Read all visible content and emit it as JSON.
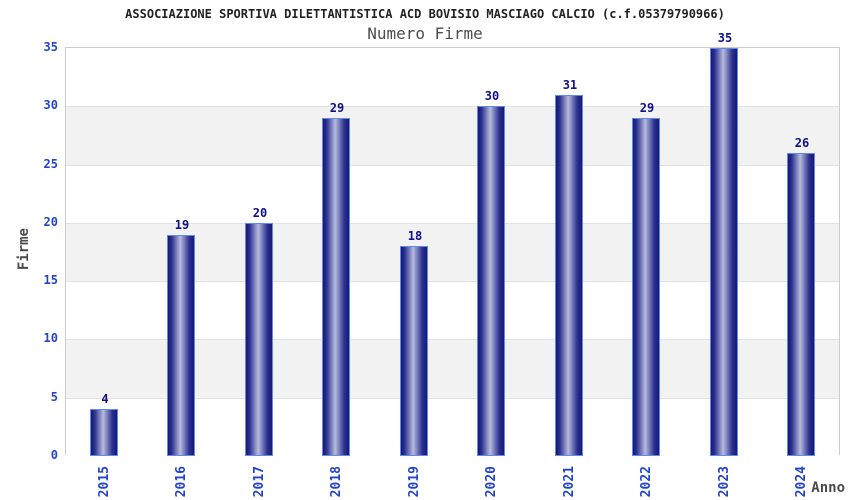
{
  "chart_data": {
    "type": "bar",
    "title": "ASSOCIAZIONE SPORTIVA DILETTANTISTICA ACD BOVISIO MASCIAGO CALCIO (c.f.05379790966)",
    "subtitle": "Numero Firme",
    "xlabel": "Anno",
    "ylabel": "Firme",
    "categories": [
      "2015",
      "2016",
      "2017",
      "2018",
      "2019",
      "2020",
      "2021",
      "2022",
      "2023",
      "2024"
    ],
    "values": [
      4,
      19,
      20,
      29,
      18,
      30,
      31,
      29,
      35,
      26
    ],
    "ylim": [
      0,
      35
    ],
    "ytick_step": 5,
    "yticks": [
      0,
      5,
      10,
      15,
      20,
      25,
      30,
      35
    ],
    "grid": "horizontal-bands",
    "legend": "none",
    "value_labels_shown": true
  },
  "style": {
    "bar_dark_color": "#181874",
    "bar_light_color": "#b6bbdc",
    "bar_border_color": "#5f8ceb",
    "tick_label_color": "#2244cc",
    "value_label_color": "#10108a",
    "band_gray_color": "#f2f2f2",
    "band_white_color": "#ffffff",
    "plot_border_color": "#cccccc",
    "title_color": "#222222",
    "subtitle_color": "#4d4d4d",
    "axis_title_color": "#4a4a4a"
  }
}
